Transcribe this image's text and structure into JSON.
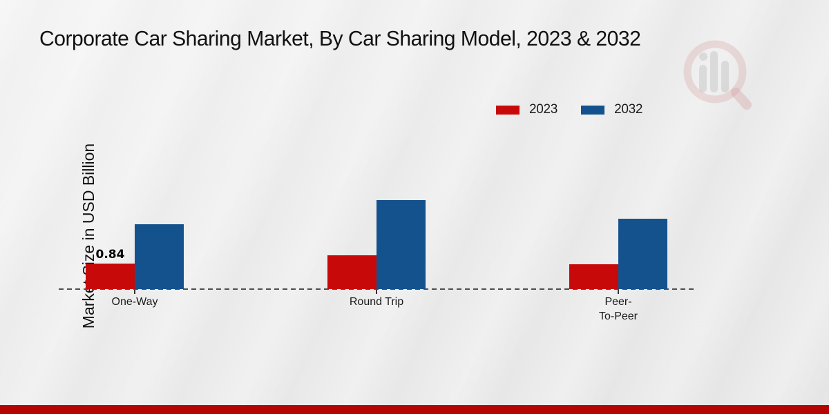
{
  "title": "Corporate Car Sharing Market, By Car Sharing Model, 2023 & 2032",
  "y_axis_label": "Market Size in USD Billion",
  "colors": {
    "series_2023": "#c80909",
    "series_2032": "#14528e",
    "bottom_band": "#b50404",
    "baseline": "#4d4d4d",
    "text": "#111111"
  },
  "legend": {
    "position": "top-right",
    "items": [
      {
        "label": "2023",
        "color": "#c80909"
      },
      {
        "label": "2032",
        "color": "#14528e"
      }
    ]
  },
  "chart_data": {
    "type": "bar",
    "title": "Corporate Car Sharing Market, By Car Sharing Model, 2023 & 2032",
    "xlabel": "",
    "ylabel": "Market Size in USD Billion",
    "categories": [
      "One-Way",
      "Round Trip",
      "Peer-To-Peer"
    ],
    "categories_display": [
      [
        "One-Way"
      ],
      [
        "Round Trip"
      ],
      [
        "Peer-",
        "To-Peer"
      ]
    ],
    "series": [
      {
        "name": "2023",
        "color": "#c80909",
        "values": [
          0.84,
          1.11,
          0.82
        ]
      },
      {
        "name": "2032",
        "color": "#14528e",
        "values": [
          2.14,
          2.93,
          2.32
        ]
      }
    ],
    "annotations": [
      {
        "series": "2023",
        "category_index": 0,
        "text": "0.84"
      }
    ],
    "ylim": [
      0,
      3.2
    ],
    "grid": false,
    "y_axis_ticks_visible": false,
    "baseline_style": "dashed",
    "legend_position": "top-right"
  },
  "watermark": {
    "icon": "magnifier-bar-chart-logo"
  }
}
